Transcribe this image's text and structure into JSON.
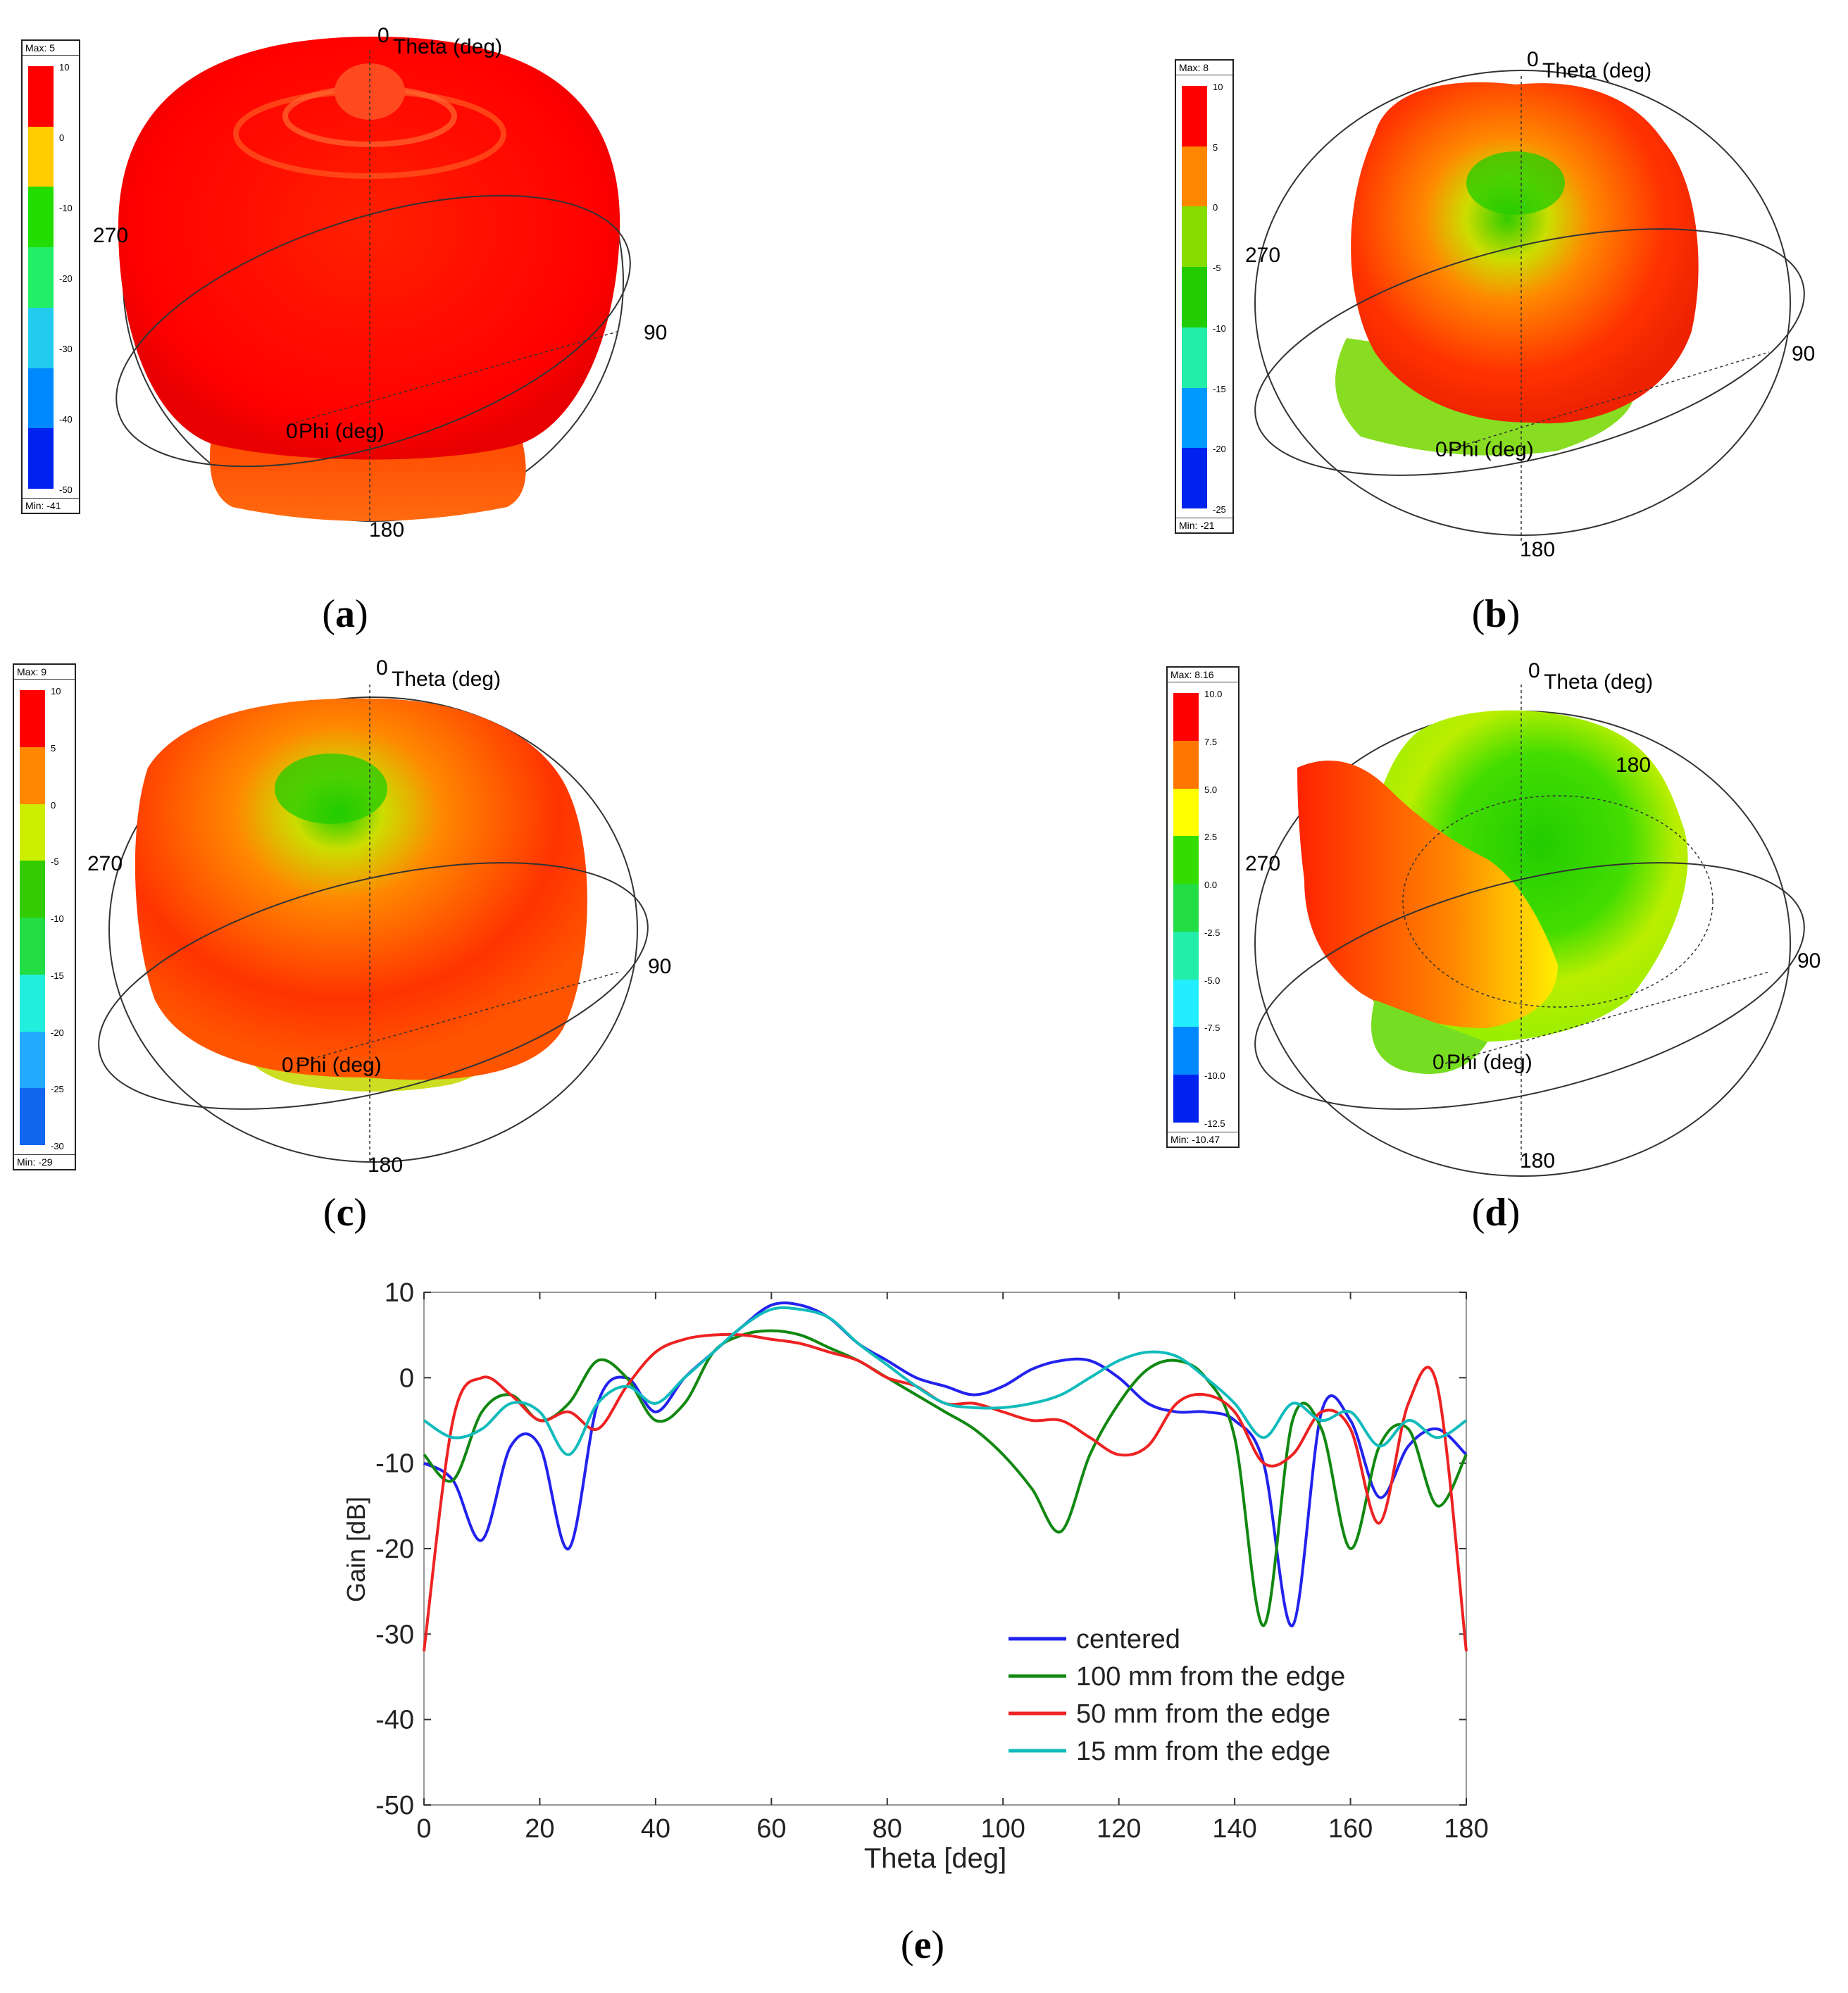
{
  "panels": [
    {
      "id": "a",
      "caption": "a",
      "colorbar": {
        "max": "Max:  5",
        "min": "Min: -41",
        "ticks": [
          "10",
          "0",
          "-10",
          "-20",
          "-30",
          "-40",
          "-50"
        ],
        "colors": [
          "#ff0000",
          "#ffcc00",
          "#22dd00",
          "#22ee66",
          "#22ccee",
          "#0088ff",
          "#0022ee"
        ]
      },
      "labels": {
        "theta0": "0",
        "theta": "Theta (deg)",
        "phi0": "0",
        "phi": "Phi (deg)",
        "left": "270",
        "right": "90",
        "bottom": "180"
      }
    },
    {
      "id": "b",
      "caption": "b",
      "colorbar": {
        "max": "Max:  8",
        "min": "Min: -21",
        "ticks": [
          "10",
          "5",
          "0",
          "-5",
          "-10",
          "-15",
          "-20",
          "-25"
        ],
        "colors": [
          "#ff0000",
          "#ff8800",
          "#88dd00",
          "#22cc00",
          "#22eeaa",
          "#0099ff",
          "#0022ee"
        ]
      },
      "labels": {
        "theta0": "0",
        "theta": "Theta (deg)",
        "phi0": "0",
        "phi": "Phi (deg)",
        "left": "270",
        "right": "90",
        "bottom": "180"
      }
    },
    {
      "id": "c",
      "caption": "c",
      "colorbar": {
        "max": "Max:  9",
        "min": "Min: -29",
        "ticks": [
          "10",
          "5",
          "0",
          "-5",
          "-10",
          "-15",
          "-20",
          "-25",
          "-30"
        ],
        "colors": [
          "#ff0000",
          "#ff8800",
          "#ccee00",
          "#33cc00",
          "#22dd44",
          "#22eedd",
          "#22aaff",
          "#1166ee"
        ]
      },
      "labels": {
        "theta0": "0",
        "theta": "Theta (deg)",
        "phi0": "0",
        "phi": "Phi (deg)",
        "left": "270",
        "right": "90",
        "bottom": "180"
      }
    },
    {
      "id": "d",
      "caption": "d",
      "colorbar": {
        "max": "Max: 8.16",
        "min": "Min: -10.47",
        "ticks": [
          "10.0",
          "7.5",
          "5.0",
          "2.5",
          "0.0",
          "-2.5",
          "-5.0",
          "-7.5",
          "-10.0",
          "-12.5"
        ],
        "colors": [
          "#ff0000",
          "#ff7700",
          "#ffff00",
          "#33dd00",
          "#22dd44",
          "#22eeaa",
          "#22eeff",
          "#0088ff",
          "#0022ee"
        ]
      },
      "labels": {
        "theta0": "0",
        "theta": "Theta (deg)",
        "phi0": "0",
        "phi": "Phi (deg)",
        "left": "270",
        "right": "90",
        "bottom": "180",
        "top_right": "180"
      }
    }
  ],
  "chart_data": {
    "type": "line",
    "caption": "e",
    "xlabel": "Theta [deg]",
    "ylabel": "Gain [dB]",
    "xlim": [
      0,
      180
    ],
    "ylim": [
      -50,
      10
    ],
    "xticks": [
      0,
      20,
      40,
      60,
      80,
      100,
      120,
      140,
      160,
      180
    ],
    "yticks": [
      10,
      0,
      -10,
      -20,
      -30,
      -40,
      -50
    ],
    "x": [
      0,
      5,
      10,
      15,
      20,
      25,
      30,
      35,
      40,
      45,
      50,
      55,
      60,
      65,
      70,
      75,
      80,
      85,
      90,
      95,
      100,
      105,
      110,
      115,
      120,
      125,
      130,
      135,
      140,
      145,
      150,
      155,
      160,
      165,
      170,
      175,
      180
    ],
    "series": [
      {
        "name": "centered",
        "color": "#2222ee",
        "values": [
          -10,
          -12,
          -19,
          -8,
          -8,
          -20,
          -3,
          0,
          -4,
          0,
          3,
          6,
          8.5,
          8.5,
          7,
          4,
          2,
          0,
          -1,
          -2,
          -1,
          1,
          2,
          2,
          0,
          -3,
          -4,
          -4,
          -5,
          -10,
          -29,
          -4,
          -5,
          -14,
          -8,
          -6,
          -9
        ]
      },
      {
        "name": "100 mm from the edge",
        "color": "#118811",
        "values": [
          -9,
          -12,
          -4,
          -2,
          -5,
          -3,
          2,
          0,
          -5,
          -3,
          3,
          5,
          5.5,
          5,
          3.5,
          2,
          0,
          -2,
          -4,
          -6,
          -9,
          -13,
          -18,
          -9,
          -3,
          1,
          2,
          0,
          -7,
          -29,
          -5,
          -6,
          -20,
          -8,
          -6,
          -15,
          -9
        ]
      },
      {
        "name": "50 mm from the edge",
        "color": "#ee2222",
        "values": [
          -32,
          -5,
          0,
          -2,
          -5,
          -4,
          -6,
          -1,
          3,
          4.5,
          5,
          5,
          4.5,
          4,
          3,
          2,
          0,
          -1,
          -3,
          -3,
          -4,
          -5,
          -5,
          -7,
          -9,
          -8,
          -3,
          -2,
          -4,
          -10,
          -9,
          -4,
          -6,
          -17,
          -3,
          -1,
          -32
        ]
      },
      {
        "name": "15 mm from the edge",
        "color": "#11bbbb",
        "values": [
          -5,
          -7,
          -6,
          -3,
          -4,
          -9,
          -3,
          -1,
          -3,
          0,
          3,
          6,
          8,
          8,
          7,
          4,
          1.5,
          -1,
          -3,
          -3.5,
          -3.5,
          -3,
          -2,
          0,
          2,
          3,
          2.5,
          0,
          -3,
          -7,
          -3,
          -5,
          -4,
          -8,
          -5,
          -7,
          -5
        ]
      }
    ]
  }
}
